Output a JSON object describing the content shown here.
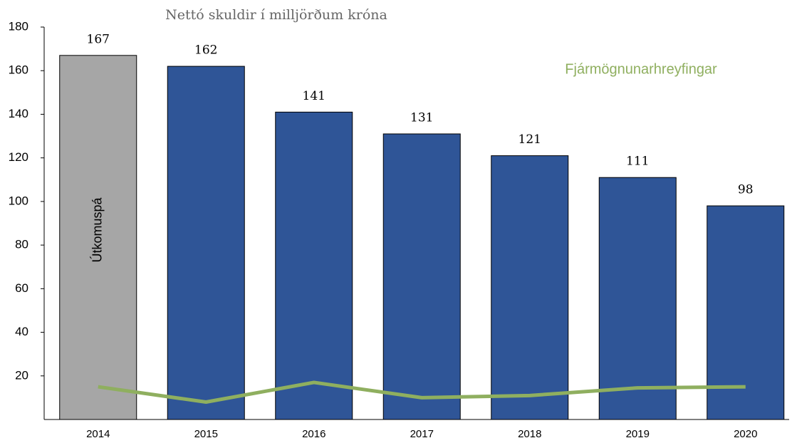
{
  "chart_data": {
    "type": "bar",
    "title": "Nettó skuldir í milljörðum króna",
    "categories": [
      "2014",
      "2015",
      "2016",
      "2017",
      "2018",
      "2019",
      "2020"
    ],
    "values": [
      167,
      162,
      141,
      131,
      121,
      111,
      98
    ],
    "colors": [
      "#a6a6a6",
      "#2f5597",
      "#2f5597",
      "#2f5597",
      "#2f5597",
      "#2f5597",
      "#2f5597"
    ],
    "annotation": "Útkomuspá",
    "line": {
      "name": "Fjármögnunarhreyfingar",
      "color": "#8faf5f",
      "values": [
        15,
        8,
        17,
        10,
        11,
        14.5,
        15
      ]
    },
    "ylim": [
      0,
      180
    ],
    "yticks": [
      20,
      40,
      60,
      80,
      100,
      120,
      140,
      160,
      180
    ],
    "grid": false
  }
}
